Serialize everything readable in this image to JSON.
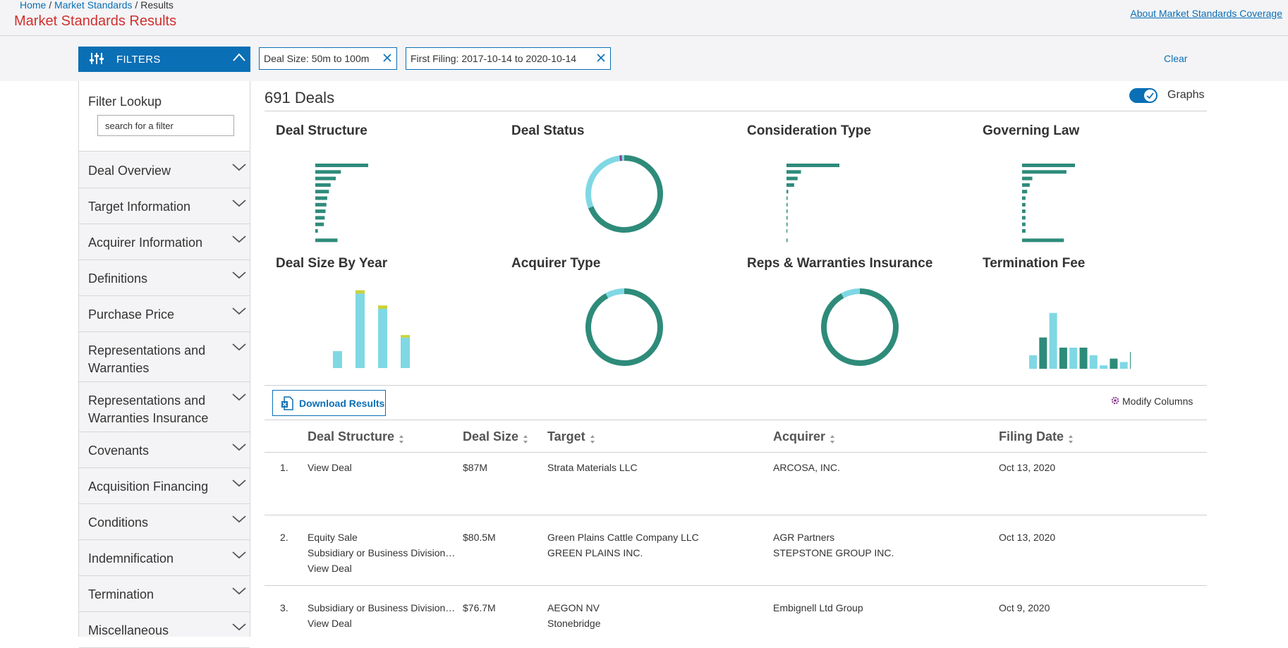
{
  "breadcrumb": {
    "home": "Home",
    "standards": "Market Standards",
    "current": "Results",
    "sep": "/"
  },
  "page_title": "Market Standards Results",
  "about_link": "About Market Standards Coverage",
  "filters": {
    "button_label": "FILTERS",
    "chips": [
      "Deal Size: 50m to 100m",
      "First Filing: 2017-10-14 to 2020-10-14"
    ],
    "clear_label": "Clear"
  },
  "sidebar": {
    "lookup_title": "Filter Lookup",
    "lookup_placeholder": "search for a filter",
    "items": [
      "Deal Overview",
      "Target Information",
      "Acquirer Information",
      "Definitions",
      "Purchase Price",
      "Representations and Warranties",
      "Representations and Warranties Insurance",
      "Covenants",
      "Acquisition Financing",
      "Conditions",
      "Indemnification",
      "Termination",
      "Miscellaneous"
    ]
  },
  "main": {
    "deal_count": "691 Deals",
    "graphs_toggle_label": "Graphs",
    "graphs_on": true,
    "download_label": "Download Results",
    "modify_columns_label": "Modify Columns"
  },
  "colors": {
    "primary_blue": "#0a6fb5",
    "title_red": "#d0302e",
    "teal": "#2e8b7a",
    "light_teal": "#7fd8e4",
    "yellow": "#c8d23a",
    "purple": "#8a3a8e"
  },
  "chart_data": [
    {
      "title": "Deal Structure",
      "type": "bar",
      "orientation": "horizontal",
      "values": [
        62,
        30,
        24,
        18,
        16,
        14,
        13,
        12,
        11,
        10,
        3,
        26
      ]
    },
    {
      "title": "Deal Status",
      "type": "pie",
      "donut": true,
      "slices": [
        {
          "value": 69,
          "color": "#2e8b7a"
        },
        {
          "value": 29,
          "color": "#7fd8e4"
        },
        {
          "value": 1,
          "color": "#8a3a8e"
        },
        {
          "value": 1,
          "color": "#7fd8e4"
        }
      ]
    },
    {
      "title": "Consideration Type",
      "type": "bar",
      "orientation": "horizontal",
      "values": [
        62,
        17,
        13,
        9,
        2,
        1,
        1,
        1,
        1,
        1,
        0,
        1
      ]
    },
    {
      "title": "Governing Law",
      "type": "bar",
      "orientation": "horizontal",
      "values": [
        62,
        52,
        12,
        9,
        6,
        4,
        4,
        4,
        4,
        4,
        4,
        49
      ]
    },
    {
      "title": "Deal Size By Year",
      "type": "bar",
      "stacked": true,
      "series": [
        {
          "values": [
            20,
            88,
            70,
            36
          ],
          "color": "#7fd8e4"
        },
        {
          "values": [
            0,
            4,
            4,
            3
          ],
          "color": "#c8d23a"
        }
      ]
    },
    {
      "title": "Acquirer Type",
      "type": "pie",
      "donut": true,
      "slices": [
        {
          "value": 92,
          "color": "#2e8b7a"
        },
        {
          "value": 8,
          "color": "#7fd8e4"
        }
      ]
    },
    {
      "title": "Reps & Warranties Insurance",
      "type": "pie",
      "donut": true,
      "slices": [
        {
          "value": 92,
          "color": "#2e8b7a"
        },
        {
          "value": 8,
          "color": "#7fd8e4"
        }
      ]
    },
    {
      "title": "Termination Fee",
      "type": "bar",
      "values": [
        16,
        37,
        66,
        25,
        25,
        25,
        16,
        4,
        12,
        8,
        20
      ],
      "colors": [
        "#7fd8e4",
        "#2e8b7a",
        "#7fd8e4",
        "#2e8b7a",
        "#7fd8e4",
        "#2e8b7a",
        "#7fd8e4",
        "#7fd8e4",
        "#2e8b7a",
        "#7fd8e4",
        "#2e8b7a"
      ]
    }
  ],
  "table": {
    "columns": [
      "Deal Structure",
      "Deal Size",
      "Target",
      "Acquirer",
      "Filing Date"
    ],
    "rows": [
      {
        "num": "1.",
        "structure": [],
        "view": "View Deal",
        "size": "$87M",
        "target": [
          "Strata Materials LLC"
        ],
        "acquirer": [
          "ARCOSA, INC."
        ],
        "date": "Oct 13, 2020"
      },
      {
        "num": "2.",
        "structure": [
          "Equity Sale",
          "Subsidiary or Business Division…"
        ],
        "view": "View Deal",
        "size": "$80.5M",
        "target": [
          "Green Plains Cattle Company LLC",
          "GREEN PLAINS INC."
        ],
        "acquirer": [
          "AGR Partners",
          "STEPSTONE GROUP INC."
        ],
        "date": "Oct 13, 2020"
      },
      {
        "num": "3.",
        "structure": [
          "Subsidiary or Business Division…"
        ],
        "view": "View Deal",
        "size": "$76.7M",
        "target": [
          "AEGON NV",
          "Stonebridge"
        ],
        "acquirer": [
          "Embignell Ltd Group"
        ],
        "date": "Oct 9, 2020"
      }
    ]
  }
}
